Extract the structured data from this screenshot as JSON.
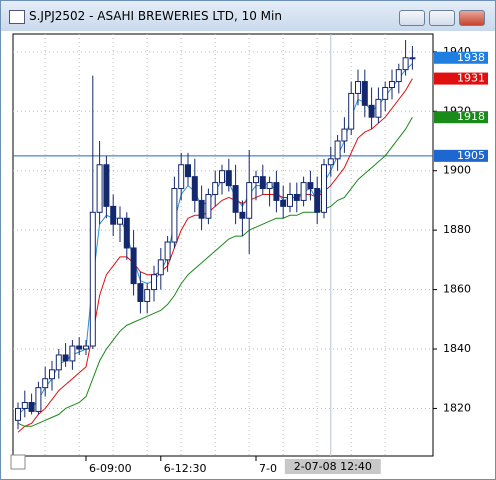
{
  "chart_data": {
    "type": "candlestick",
    "title": "S.JPJ2502 - ASAHI BREWERIES LTD, 10 Min",
    "categories": [
      null,
      null,
      null,
      null,
      null,
      null,
      null,
      null,
      null,
      null,
      "6-09:00",
      null,
      null,
      null,
      null,
      null,
      null,
      null,
      null,
      null,
      null,
      "6-12:30",
      null,
      null,
      null,
      null,
      null,
      null,
      null,
      null,
      null,
      null,
      null,
      null,
      null,
      "7-0",
      null,
      null,
      null,
      null,
      null,
      null,
      null,
      null,
      null,
      null,
      null,
      null,
      null,
      null,
      null,
      null,
      null,
      null,
      null,
      null,
      null,
      null,
      null
    ],
    "open": [
      1816,
      1820,
      1822,
      1819,
      1827,
      1830,
      1833,
      1838,
      1836,
      1841,
      1840,
      1841,
      1886,
      1902,
      1888,
      1882,
      1884,
      1874,
      1862,
      1856,
      1860,
      1865,
      1870,
      1876,
      1894,
      1902,
      1898,
      1890,
      1884,
      1892,
      1896,
      1900,
      1895,
      1886,
      1884,
      1896,
      1898,
      1894,
      1896,
      1890,
      1888,
      1892,
      1890,
      1896,
      1894,
      1886,
      1902,
      1904,
      1910,
      1914,
      1926,
      1930,
      1922,
      1918,
      1924,
      1928,
      1930,
      1934,
      1938
    ],
    "high": [
      1822,
      1826,
      1825,
      1829,
      1834,
      1836,
      1840,
      1842,
      1843,
      1844,
      1843,
      1932,
      1910,
      1905,
      1892,
      1888,
      1886,
      1880,
      1866,
      1862,
      1868,
      1874,
      1878,
      1898,
      1906,
      1906,
      1904,
      1895,
      1894,
      1900,
      1902,
      1904,
      1902,
      1890,
      1907,
      1900,
      1902,
      1898,
      1900,
      1895,
      1896,
      1896,
      1898,
      1900,
      1898,
      1904,
      1908,
      1912,
      1918,
      1930,
      1934,
      1934,
      1928,
      1928,
      1930,
      1934,
      1936,
      1944,
      1942
    ],
    "low": [
      1813,
      1817,
      1818,
      1818,
      1824,
      1826,
      1830,
      1834,
      1833,
      1838,
      1838,
      1840,
      1882,
      1884,
      1878,
      1876,
      1870,
      1858,
      1852,
      1852,
      1856,
      1860,
      1866,
      1874,
      1890,
      1895,
      1886,
      1880,
      1882,
      1888,
      1892,
      1893,
      1882,
      1878,
      1872,
      1890,
      1892,
      1888,
      1886,
      1884,
      1886,
      1886,
      1888,
      1890,
      1882,
      1884,
      1898,
      1900,
      1906,
      1912,
      1922,
      1918,
      1914,
      1916,
      1920,
      1924,
      1926,
      1932,
      1934
    ],
    "close": [
      1820,
      1822,
      1819,
      1827,
      1830,
      1833,
      1838,
      1836,
      1841,
      1840,
      1841,
      1886,
      1902,
      1888,
      1882,
      1884,
      1874,
      1862,
      1856,
      1860,
      1865,
      1870,
      1876,
      1894,
      1902,
      1898,
      1890,
      1884,
      1892,
      1896,
      1900,
      1895,
      1886,
      1884,
      1896,
      1898,
      1894,
      1896,
      1890,
      1888,
      1892,
      1890,
      1896,
      1894,
      1886,
      1902,
      1904,
      1910,
      1914,
      1926,
      1930,
      1922,
      1918,
      1924,
      1928,
      1930,
      1934,
      1938,
      1938
    ],
    "up_color": "#ffffff",
    "down_color": "#14286e",
    "wick_color": "#14286e",
    "series": [
      {
        "color": "#2a8fd8",
        "values": [
          1818,
          1820,
          1820,
          1823,
          1827,
          1830,
          1835,
          1836,
          1838,
          1839,
          1840,
          1863,
          1882,
          1885,
          1884,
          1884,
          1879,
          1870,
          1863,
          1862,
          1863,
          1866,
          1871,
          1883,
          1892,
          1895,
          1893,
          1888,
          1890,
          1893,
          1897,
          1896,
          1891,
          1888,
          1892,
          1895,
          1895,
          1896,
          1893,
          1890,
          1891,
          1891,
          1893,
          1894,
          1890,
          1896,
          1900,
          1905,
          1910,
          1918,
          1924,
          1923,
          1920,
          1922,
          1925,
          1928,
          1931,
          1934,
          1936
        ]
      },
      {
        "color": "#e01010",
        "values": [
          1812,
          1814,
          1815,
          1818,
          1820,
          1823,
          1826,
          1828,
          1830,
          1832,
          1834,
          1845,
          1858,
          1865,
          1868,
          1871,
          1871,
          1869,
          1866,
          1865,
          1865,
          1866,
          1868,
          1874,
          1880,
          1884,
          1885,
          1885,
          1886,
          1888,
          1890,
          1891,
          1890,
          1889,
          1890,
          1891,
          1892,
          1892,
          1892,
          1891,
          1891,
          1891,
          1892,
          1892,
          1891,
          1893,
          1895,
          1898,
          1901,
          1906,
          1911,
          1913,
          1914,
          1916,
          1918,
          1921,
          1924,
          1927,
          1931
        ]
      },
      {
        "color": "#1a8a1a",
        "values": [
          1815,
          1814,
          1814,
          1815,
          1816,
          1817,
          1818,
          1820,
          1821,
          1822,
          1824,
          1830,
          1836,
          1840,
          1843,
          1846,
          1848,
          1849,
          1850,
          1851,
          1852,
          1853,
          1855,
          1858,
          1862,
          1865,
          1867,
          1869,
          1871,
          1873,
          1875,
          1877,
          1878,
          1878,
          1880,
          1881,
          1882,
          1883,
          1884,
          1884,
          1885,
          1885,
          1886,
          1886,
          1886,
          1887,
          1888,
          1890,
          1891,
          1894,
          1897,
          1899,
          1901,
          1903,
          1905,
          1908,
          1911,
          1914,
          1918
        ]
      }
    ],
    "price_tags": [
      {
        "value": 1938,
        "color": "#1e7fe0"
      },
      {
        "value": 1931,
        "color": "#e01010"
      },
      {
        "value": 1918,
        "color": "#1a8a1a"
      }
    ],
    "hline": {
      "value": 1905,
      "color": "#1e66d0"
    },
    "crosshair_label": "2-07-08  12:40",
    "ylim": [
      1804,
      1946
    ],
    "yticks": [
      1820,
      1840,
      1860,
      1880,
      1900,
      1920,
      1940
    ],
    "grid": true
  }
}
